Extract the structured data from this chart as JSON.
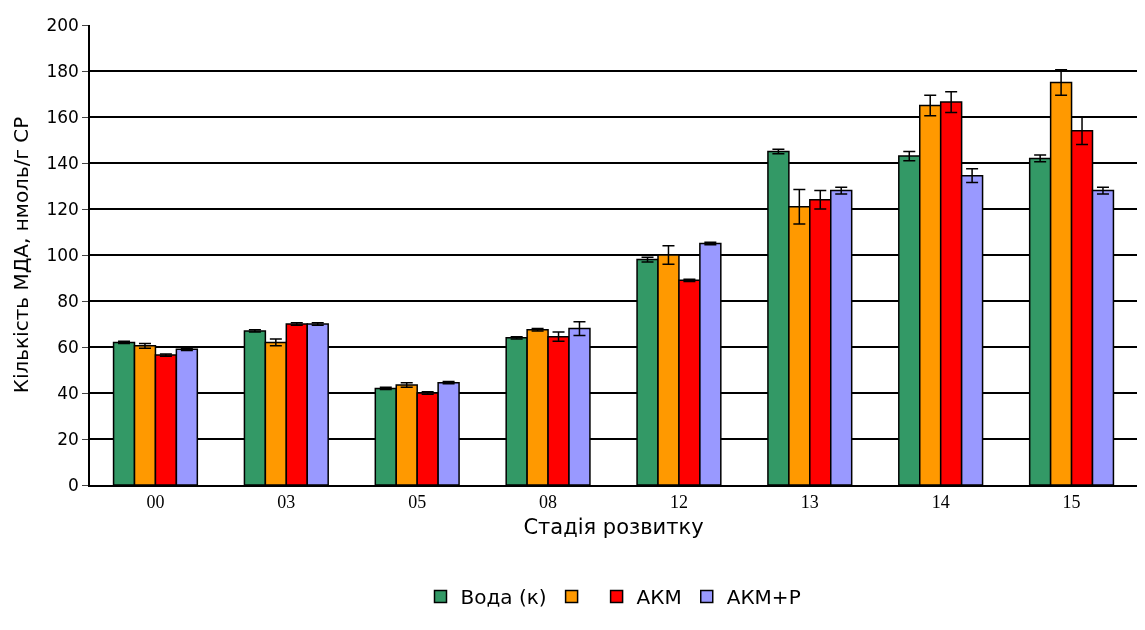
{
  "chart_data": {
    "type": "bar",
    "xlabel": "Стадія розвитку",
    "ylabel": "Кількість МДА, нмоль/г СР",
    "categories": [
      "00",
      "03",
      "05",
      "08",
      "12",
      "13",
      "14",
      "15"
    ],
    "series": [
      {
        "name": "Вода (к)",
        "color": "#339966",
        "values": [
          62,
          67,
          42,
          64,
          98,
          145,
          143,
          142
        ],
        "errors": [
          0.5,
          0.5,
          0.5,
          0.5,
          1,
          1,
          2,
          1.5
        ]
      },
      {
        "color": "#ff9900",
        "values": [
          60.5,
          62,
          43.5,
          67.5,
          100,
          121,
          165,
          175
        ],
        "errors": [
          1,
          1.5,
          1,
          0.5,
          4,
          7.5,
          4.5,
          5.5
        ]
      },
      {
        "name": "АКМ",
        "color": "#ff0000",
        "values": [
          56.5,
          70,
          40,
          64.5,
          89,
          124,
          166.5,
          154
        ],
        "errors": [
          0.5,
          0.5,
          0.5,
          2,
          0.5,
          4,
          4.5,
          6
        ]
      },
      {
        "name": "АКМ+Р",
        "color": "#9999ff",
        "values": [
          59,
          70,
          44.5,
          68,
          105,
          128,
          134.5,
          128
        ],
        "errors": [
          0.5,
          0.5,
          0.5,
          3,
          0.5,
          1.5,
          3,
          1.5
        ]
      }
    ],
    "ylim": [
      0,
      200
    ],
    "yticks": [
      0,
      20,
      40,
      60,
      80,
      100,
      120,
      140,
      160,
      180,
      200
    ],
    "grid": "y",
    "legend": "bottom"
  }
}
